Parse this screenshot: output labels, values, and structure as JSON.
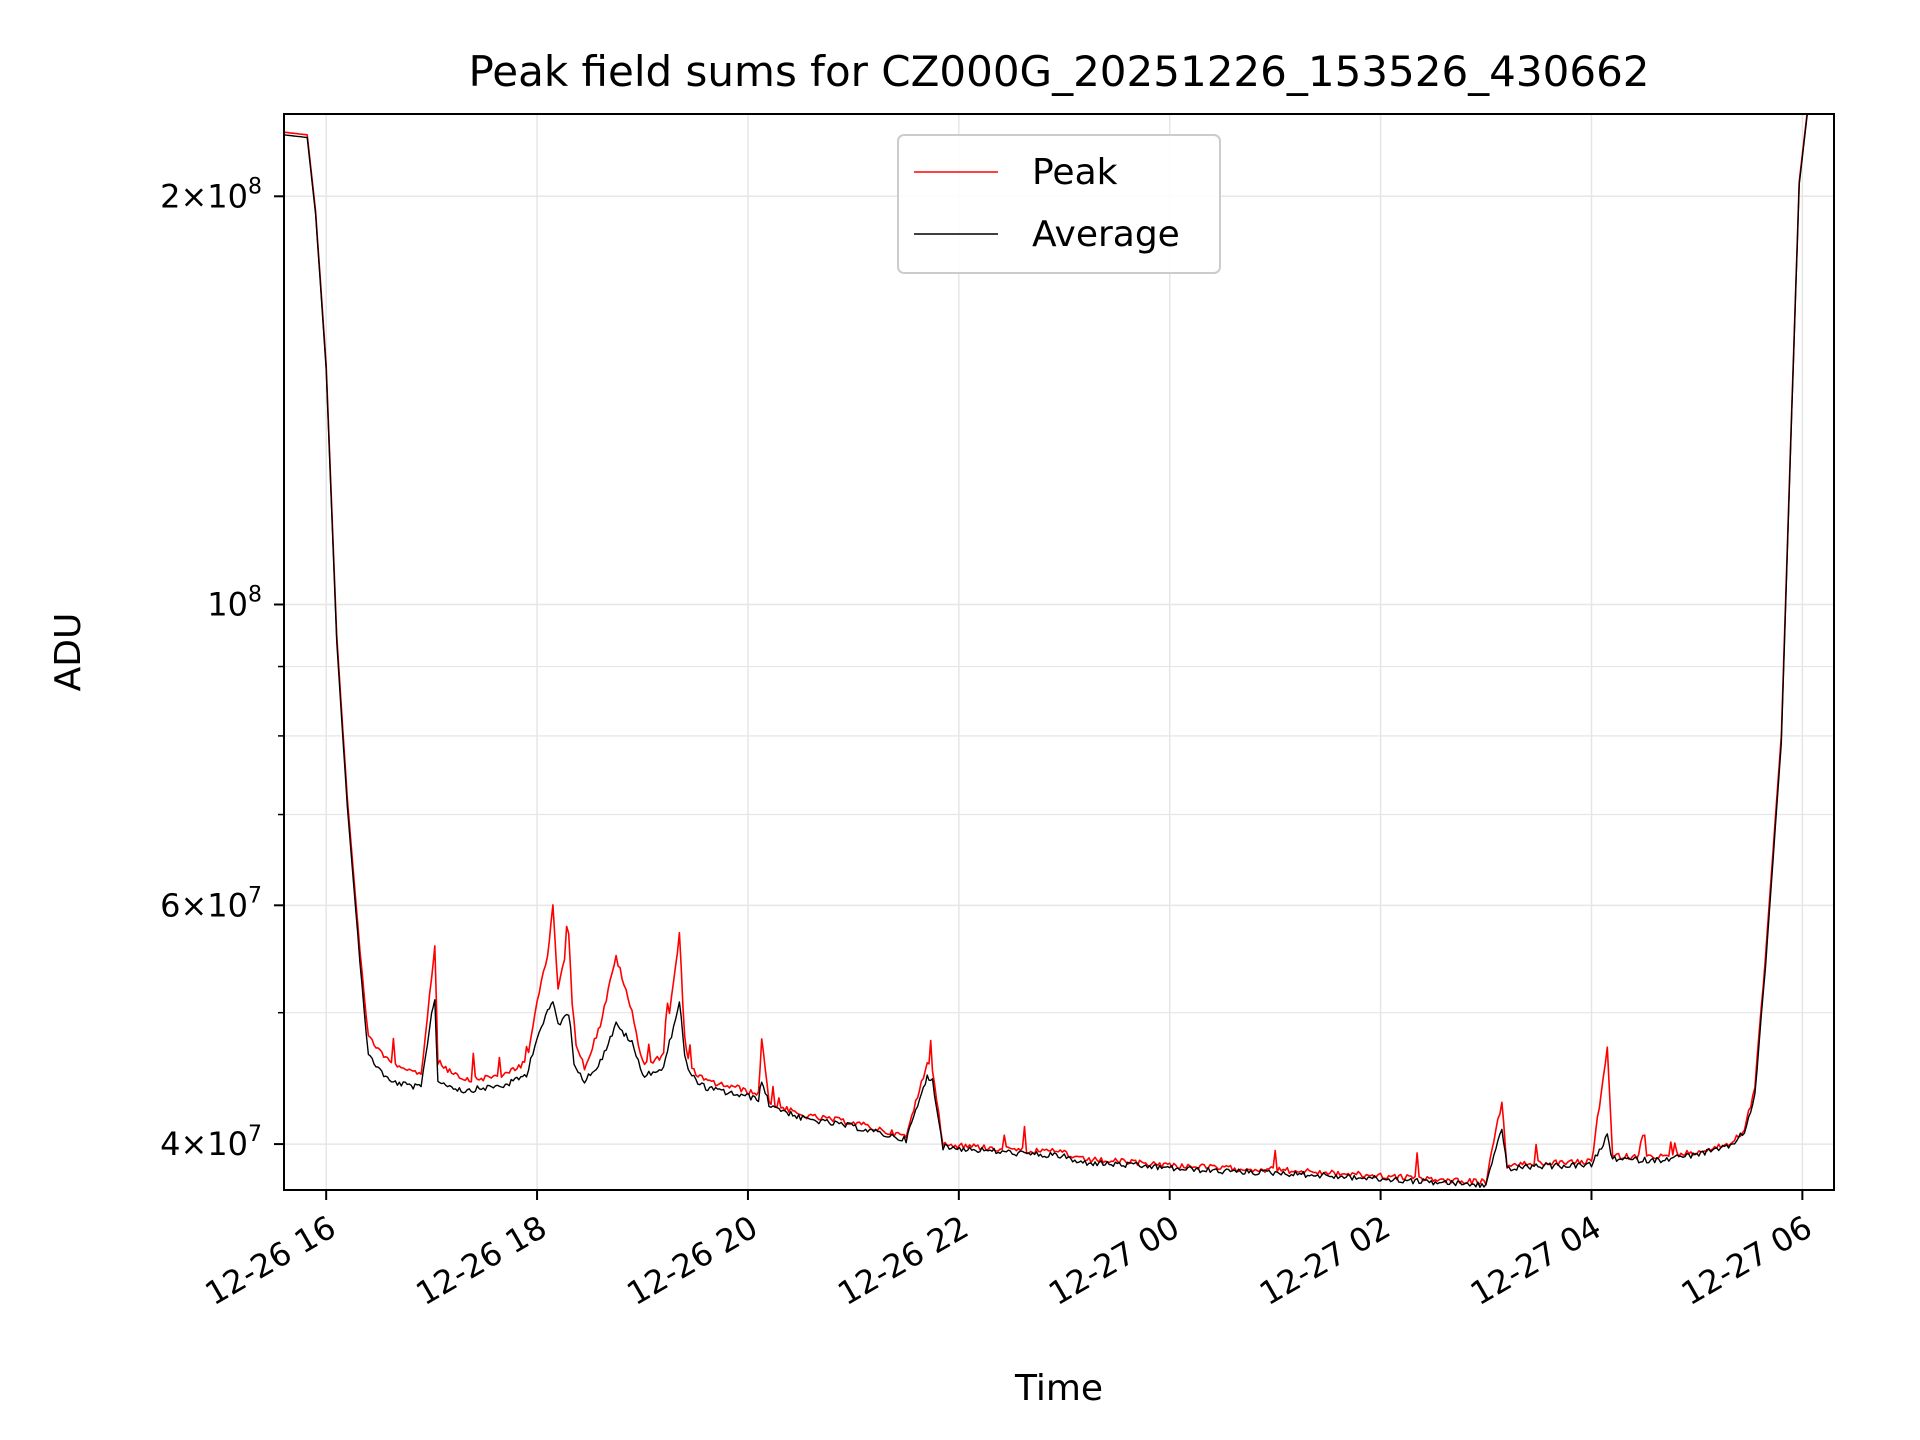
{
  "chart_data": {
    "type": "line",
    "title": "Peak field sums for CZ000G_20251226_153526_430662",
    "xlabel": "Time",
    "ylabel": "ADU",
    "yscale": "log",
    "ylim": [
      37000000,
      230000000
    ],
    "xlim_hours": [
      15.6,
      30.3
    ],
    "grid": true,
    "legend_position": "top-center",
    "x_ticks": [
      {
        "hour": 16,
        "label": "12-26 16"
      },
      {
        "hour": 18,
        "label": "12-26 18"
      },
      {
        "hour": 20,
        "label": "12-26 20"
      },
      {
        "hour": 22,
        "label": "12-26 22"
      },
      {
        "hour": 24,
        "label": "12-27 00"
      },
      {
        "hour": 26,
        "label": "12-27 02"
      },
      {
        "hour": 28,
        "label": "12-27 04"
      },
      {
        "hour": 30,
        "label": "12-27 06"
      }
    ],
    "y_ticks": [
      {
        "value": 40000000,
        "mant": "4",
        "exp": "7"
      },
      {
        "value": 60000000,
        "mant": "6",
        "exp": "7"
      },
      {
        "value": 100000000,
        "mant": "",
        "exp": "8"
      },
      {
        "value": 200000000,
        "mant": "2",
        "exp": "8"
      }
    ],
    "y_minor_ticks": [
      50000000,
      70000000,
      80000000,
      90000000
    ],
    "series": [
      {
        "name": "Peak",
        "color": "#ff0000",
        "x_hours": [
          15.6,
          15.82,
          15.9,
          16.0,
          16.1,
          16.2,
          16.3,
          16.4,
          16.6,
          16.9,
          17.0,
          17.03,
          17.06,
          17.3,
          17.7,
          17.9,
          18.0,
          18.1,
          18.15,
          18.2,
          18.3,
          18.35,
          18.45,
          18.6,
          18.75,
          18.9,
          19.0,
          19.1,
          19.2,
          19.35,
          19.4,
          19.45,
          19.6,
          19.9,
          20.1,
          20.13,
          20.2,
          20.5,
          21.0,
          21.5,
          21.7,
          21.75,
          21.85,
          22.2,
          22.7,
          23.0,
          23.1,
          23.6,
          24.0,
          24.5,
          25.0,
          25.5,
          26.0,
          26.5,
          27.0,
          27.15,
          27.2,
          27.4,
          28.0,
          28.15,
          28.2,
          28.6,
          29.0,
          29.3,
          29.45,
          29.55,
          29.65,
          29.8,
          29.9,
          29.97,
          30.05,
          30.3
        ],
        "values": [
          223000000,
          222000000,
          195000000,
          150000000,
          95000000,
          72000000,
          58000000,
          48000000,
          46000000,
          45000000,
          53000000,
          56000000,
          46000000,
          44500000,
          45000000,
          46000000,
          51000000,
          55000000,
          60000000,
          52000000,
          57000000,
          48000000,
          45500000,
          49000000,
          55000000,
          50000000,
          46000000,
          46000000,
          46500000,
          57000000,
          48000000,
          45500000,
          44500000,
          44000000,
          43500000,
          48000000,
          43000000,
          42000000,
          41500000,
          40500000,
          46000000,
          45500000,
          40000000,
          39800000,
          39500000,
          39500000,
          39000000,
          38800000,
          38600000,
          38400000,
          38300000,
          38100000,
          37900000,
          37700000,
          37500000,
          43000000,
          38500000,
          38700000,
          38800000,
          47000000,
          39200000,
          39100000,
          39500000,
          40000000,
          41000000,
          44000000,
          55000000,
          80000000,
          140000000,
          205000000,
          232000000,
          232000000
        ]
      },
      {
        "name": "Average",
        "color": "#000000",
        "x_hours": [
          15.6,
          15.82,
          15.9,
          16.0,
          16.1,
          16.2,
          16.3,
          16.4,
          16.6,
          16.9,
          17.0,
          17.03,
          17.06,
          17.3,
          17.7,
          17.9,
          18.0,
          18.1,
          18.15,
          18.2,
          18.3,
          18.35,
          18.45,
          18.6,
          18.75,
          18.9,
          19.0,
          19.1,
          19.2,
          19.35,
          19.4,
          19.45,
          19.6,
          19.9,
          20.1,
          20.13,
          20.2,
          20.5,
          21.0,
          21.5,
          21.7,
          21.75,
          21.85,
          22.2,
          22.7,
          23.0,
          23.1,
          23.6,
          24.0,
          24.5,
          25.0,
          25.5,
          26.0,
          26.5,
          27.0,
          27.15,
          27.2,
          27.4,
          28.0,
          28.15,
          28.2,
          28.6,
          29.0,
          29.3,
          29.45,
          29.55,
          29.65,
          29.8,
          29.9,
          29.97,
          30.05,
          30.3
        ],
        "values": [
          222000000,
          221000000,
          194000000,
          149000000,
          94000000,
          71000000,
          57000000,
          46500000,
          44500000,
          44000000,
          50000000,
          51000000,
          44500000,
          43800000,
          44200000,
          45000000,
          48000000,
          50000000,
          51000000,
          49000000,
          50000000,
          46000000,
          44500000,
          46000000,
          49000000,
          47500000,
          45000000,
          45200000,
          45500000,
          51000000,
          46500000,
          45000000,
          44000000,
          43500000,
          43200000,
          44500000,
          42800000,
          41800000,
          41200000,
          40300000,
          44800000,
          44600000,
          39800000,
          39600000,
          39300000,
          39200000,
          38800000,
          38600000,
          38400000,
          38200000,
          38100000,
          37900000,
          37700000,
          37500000,
          37300000,
          41200000,
          38300000,
          38500000,
          38600000,
          40500000,
          39000000,
          38900000,
          39300000,
          39800000,
          40800000,
          43500000,
          54000000,
          79000000,
          139000000,
          204000000,
          231000000,
          231000000
        ]
      }
    ]
  }
}
